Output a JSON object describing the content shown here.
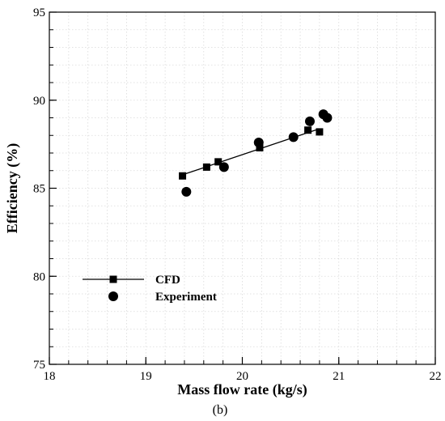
{
  "chart_data": {
    "type": "scatter",
    "panel_label": "(b)",
    "xlabel": "Mass flow rate (kg/s)",
    "ylabel": "Efficiency (%)",
    "xlim": [
      18,
      22
    ],
    "ylim": [
      75,
      95
    ],
    "x_ticks": [
      18,
      19,
      20,
      21,
      22
    ],
    "y_ticks": [
      75,
      80,
      85,
      90,
      95
    ],
    "x_tick_labels": [
      "18",
      "19",
      "20",
      "21",
      "22"
    ],
    "y_tick_labels": [
      "75",
      "80",
      "85",
      "90",
      "95"
    ],
    "grid": true,
    "legend_position": "left",
    "series": [
      {
        "name": "CFD",
        "marker": "square",
        "line": true,
        "x": [
          19.38,
          19.63,
          19.75,
          20.18,
          20.68,
          20.8
        ],
        "y": [
          85.7,
          86.2,
          86.5,
          87.3,
          88.3,
          88.2
        ]
      },
      {
        "name": "Experiment",
        "marker": "circle",
        "line": false,
        "x": [
          19.42,
          19.81,
          20.17,
          20.53,
          20.7,
          20.84,
          20.88
        ],
        "y": [
          84.8,
          86.2,
          87.6,
          87.9,
          88.8,
          89.2,
          89.0
        ]
      }
    ]
  }
}
